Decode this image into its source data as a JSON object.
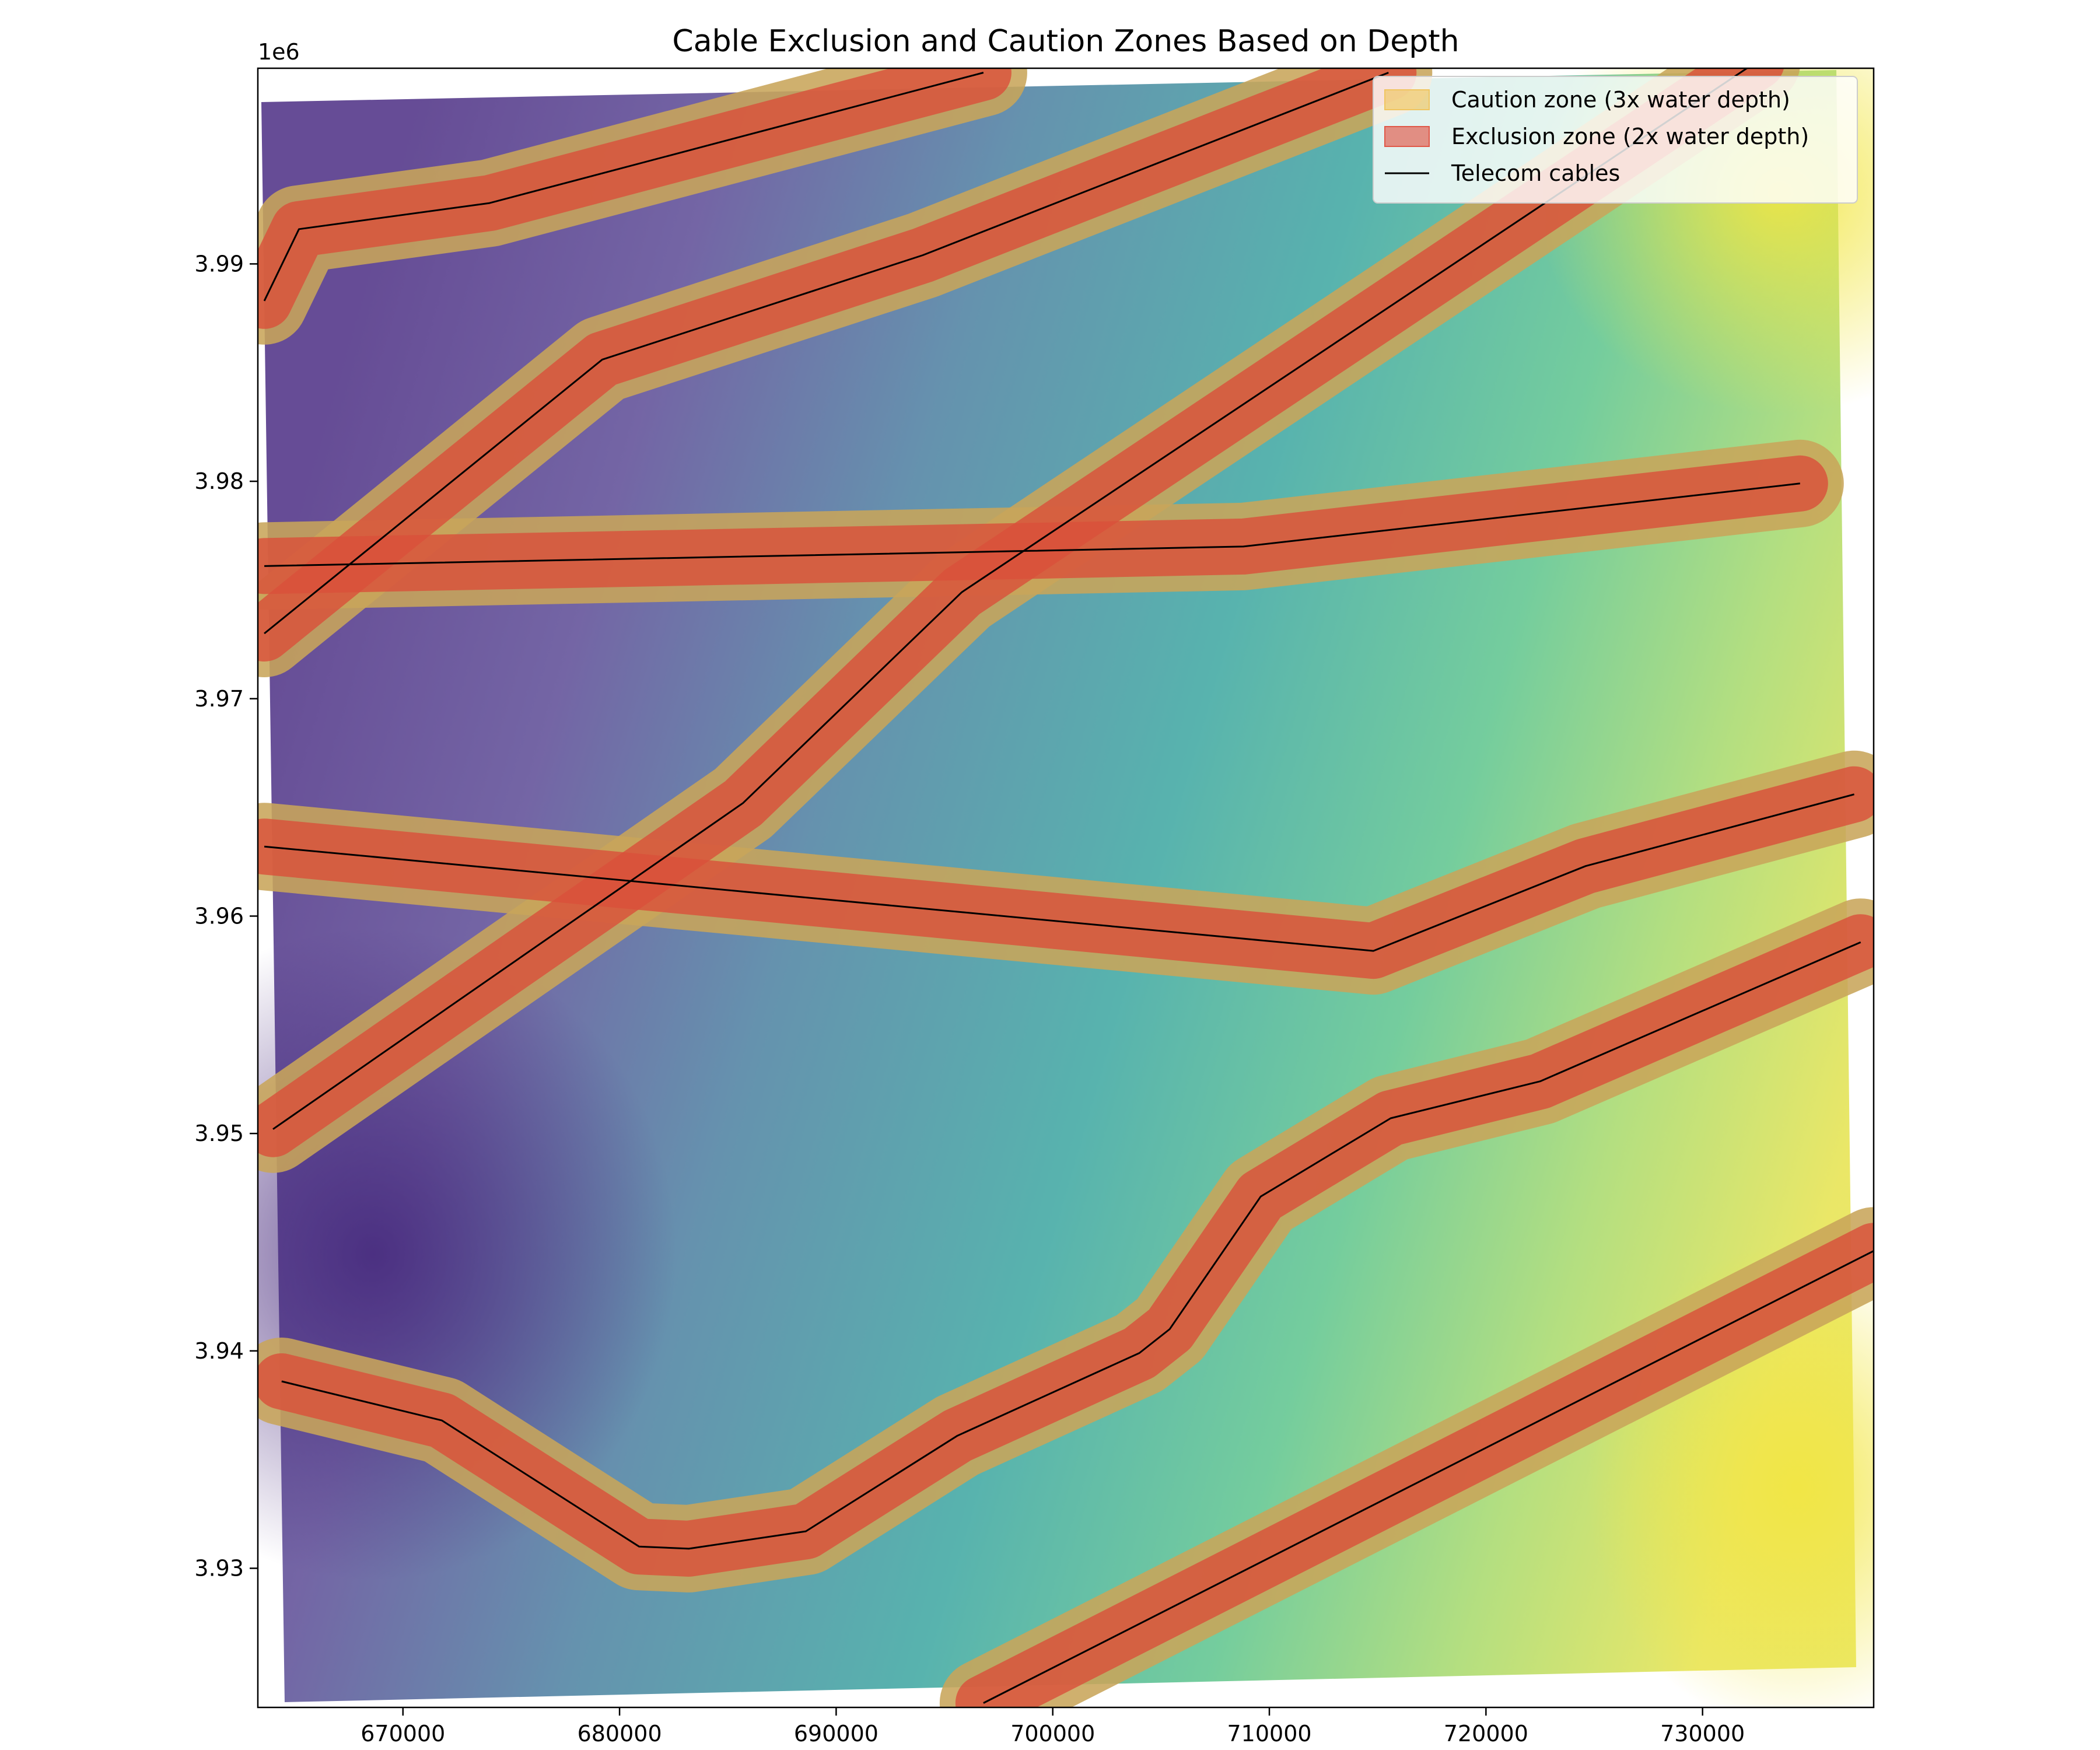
{
  "chart_data": {
    "type": "map",
    "title": "Cable Exclusion and Caution Zones Based on Depth",
    "xlabel": "",
    "ylabel": "",
    "offset_label": "1e6",
    "xlim": [
      663300,
      737900
    ],
    "ylim": [
      3923600,
      3999000
    ],
    "xticks": [
      670000,
      680000,
      690000,
      700000,
      710000,
      720000,
      730000
    ],
    "xtick_labels": [
      "670000",
      "680000",
      "690000",
      "700000",
      "710000",
      "720000",
      "730000"
    ],
    "yticks": [
      3930000,
      3940000,
      3950000,
      3960000,
      3970000,
      3980000,
      3990000
    ],
    "ytick_labels": [
      "3.93",
      "3.94",
      "3.95",
      "3.96",
      "3.97",
      "3.98",
      "3.99"
    ],
    "grid": false,
    "legend_position": "top-right",
    "legend": [
      {
        "label": "Caution zone (3x water depth)",
        "kind": "patch",
        "color": "#f0c560"
      },
      {
        "label": "Exclusion zone (2x water depth)",
        "kind": "patch",
        "color": "#e05848"
      },
      {
        "label": "Telecom cables",
        "kind": "line",
        "color": "#000000"
      }
    ],
    "colormap": "viridis",
    "zone_colors": {
      "caution": "#c8a55a",
      "exclusion": "#d9503a",
      "cable": "#000000"
    },
    "cables": [
      {
        "points": [
          [
            663600,
            3988300
          ],
          [
            665200,
            3991600
          ],
          [
            674000,
            3992800
          ],
          [
            696800,
            3998800
          ]
        ]
      },
      {
        "points": [
          [
            663600,
            3973000
          ],
          [
            679200,
            3985600
          ],
          [
            694000,
            3990400
          ],
          [
            715500,
            3998800
          ]
        ]
      },
      {
        "points": [
          [
            663600,
            3976100
          ],
          [
            699000,
            3976800
          ],
          [
            708800,
            3977000
          ],
          [
            734500,
            3979900
          ]
        ]
      },
      {
        "points": [
          [
            664000,
            3950200
          ],
          [
            685700,
            3965200
          ],
          [
            695800,
            3974900
          ],
          [
            732500,
            3999300
          ]
        ]
      },
      {
        "points": [
          [
            663600,
            3963200
          ],
          [
            714800,
            3958400
          ],
          [
            724600,
            3962300
          ],
          [
            737000,
            3965600
          ]
        ]
      },
      {
        "points": [
          [
            664400,
            3938600
          ],
          [
            671800,
            3936800
          ],
          [
            680900,
            3931000
          ],
          [
            683200,
            3930900
          ],
          [
            688600,
            3931700
          ],
          [
            695600,
            3936100
          ],
          [
            704000,
            3939900
          ],
          [
            705400,
            3941000
          ],
          [
            709600,
            3947100
          ],
          [
            715600,
            3950700
          ],
          [
            722500,
            3952400
          ],
          [
            737300,
            3958800
          ]
        ]
      },
      {
        "points": [
          [
            696800,
            3923800
          ],
          [
            737900,
            3944600
          ]
        ]
      }
    ]
  }
}
